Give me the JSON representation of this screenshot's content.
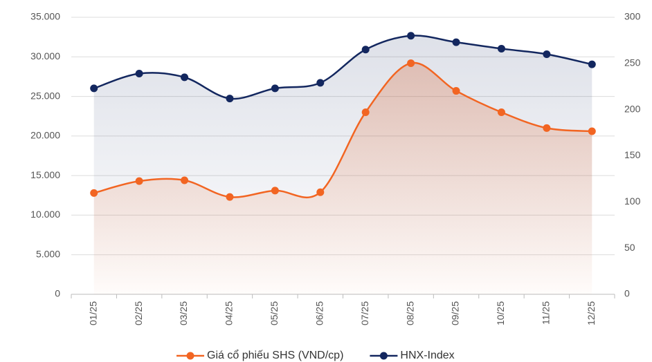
{
  "chart_data": {
    "type": "line",
    "categories": [
      "01/25",
      "02/25",
      "03/25",
      "04/25",
      "05/25",
      "06/25",
      "07/25",
      "08/25",
      "09/25",
      "10/25",
      "11/25",
      "12/25"
    ],
    "series": [
      {
        "name": "Giá cổ phiếu SHS (VND/cp)",
        "color": "#f26522",
        "axis": "y",
        "values": [
          12800,
          14300,
          14400,
          12300,
          13100,
          12900,
          23000,
          29200,
          25700,
          23000,
          21000,
          20600
        ]
      },
      {
        "name": "HNX-Index",
        "color": "#13275f",
        "axis": "y2",
        "values": [
          223,
          239,
          235,
          212,
          223,
          229,
          265,
          280,
          273,
          266,
          260,
          249
        ]
      }
    ],
    "ylim": [
      0,
      35000
    ],
    "yticks": [
      0,
      {
        "value": 5000,
        "label": "5.000"
      },
      {
        "value": 10000,
        "label": "10.000"
      },
      {
        "value": 15000,
        "label": "15.000"
      },
      {
        "value": 20000,
        "label": "20.000"
      },
      {
        "value": 25000,
        "label": "25.000"
      },
      {
        "value": 30000,
        "label": "30.000"
      },
      {
        "value": 35000,
        "label": "35.000"
      }
    ],
    "y2lim": [
      0,
      300
    ],
    "y2ticks": [
      0,
      50,
      100,
      150,
      200,
      250,
      300
    ],
    "grid": true,
    "legend": "bottom"
  }
}
